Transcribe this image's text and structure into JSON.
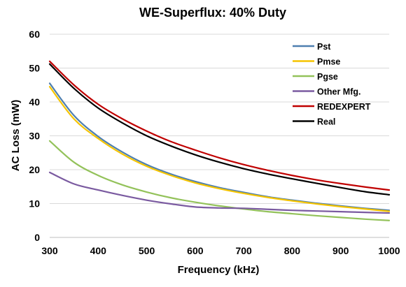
{
  "chart_data": {
    "type": "line",
    "title": "WE-Superflux: 40% Duty",
    "xlabel": "Frequency (kHz)",
    "ylabel": "AC Loss (mW)",
    "xlim": [
      300,
      1000
    ],
    "ylim": [
      0,
      60
    ],
    "x_ticks": [
      300,
      400,
      500,
      600,
      700,
      800,
      900,
      1000
    ],
    "y_ticks": [
      0,
      10,
      20,
      30,
      40,
      50,
      60
    ],
    "grid": "horizontal",
    "legend_position": "top-right",
    "x": [
      300,
      350,
      400,
      450,
      500,
      550,
      600,
      650,
      700,
      750,
      800,
      850,
      900,
      950,
      1000
    ],
    "series": [
      {
        "name": "Pst",
        "color": "#4e7faf",
        "values": [
          45.5,
          36,
          29.8,
          25.2,
          21.5,
          18.7,
          16.5,
          14.7,
          13.3,
          12.0,
          11.0,
          10.1,
          9.3,
          8.6,
          8.0
        ]
      },
      {
        "name": "Pmse",
        "color": "#f5c400",
        "values": [
          44.5,
          35,
          29.2,
          24.6,
          21.0,
          18.3,
          16.1,
          14.4,
          13.0,
          11.8,
          10.8,
          9.9,
          9.1,
          8.4,
          7.7
        ]
      },
      {
        "name": "Pgse",
        "color": "#93c25a",
        "values": [
          28.5,
          22.2,
          18.3,
          15.5,
          13.4,
          11.7,
          10.4,
          9.3,
          8.4,
          7.6,
          7.0,
          6.4,
          5.9,
          5.4,
          5.0
        ]
      },
      {
        "name": "Other Mfg.",
        "color": "#7a5aa0",
        "values": [
          19.2,
          15.8,
          14.0,
          12.4,
          11.0,
          9.9,
          9.0,
          8.7,
          8.6,
          8.3,
          8.0,
          7.8,
          7.6,
          7.4,
          7.2
        ]
      },
      {
        "name": "REDEXPERT",
        "color": "#c00000",
        "values": [
          52.0,
          45.0,
          39.3,
          35.0,
          31.4,
          28.3,
          25.8,
          23.5,
          21.5,
          19.8,
          18.3,
          17.0,
          15.9,
          14.9,
          14.0
        ]
      },
      {
        "name": "Real",
        "color": "#000000",
        "values": [
          51.2,
          44.0,
          38.2,
          33.8,
          30.0,
          27.0,
          24.4,
          22.2,
          20.3,
          18.7,
          17.3,
          16.0,
          14.7,
          13.5,
          12.6
        ]
      }
    ]
  }
}
